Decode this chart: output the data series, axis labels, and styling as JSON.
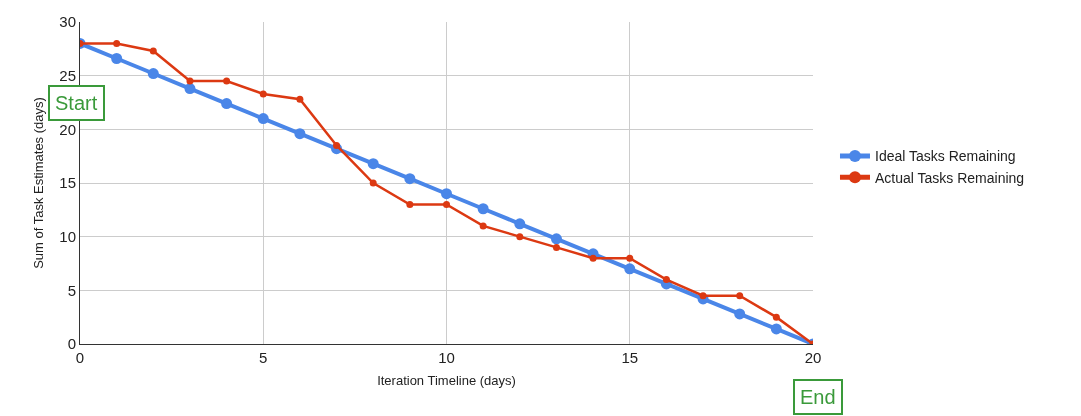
{
  "chart_data": {
    "type": "line",
    "xlabel": "Iteration Timeline (days)",
    "ylabel": "Sum of Task Estimates (days)",
    "x": [
      0,
      1,
      2,
      3,
      4,
      5,
      6,
      7,
      8,
      9,
      10,
      11,
      12,
      13,
      14,
      15,
      16,
      17,
      18,
      19,
      20
    ],
    "series": [
      {
        "name": "Ideal Tasks Remaining",
        "color": "#4a86e8",
        "values": [
          28,
          26.6,
          25.2,
          23.8,
          22.4,
          21,
          19.6,
          18.2,
          16.8,
          15.4,
          14,
          12.6,
          11.2,
          9.8,
          8.4,
          7,
          5.6,
          4.2,
          2.8,
          1.4,
          0
        ]
      },
      {
        "name": "Actual Tasks Remaining",
        "color": "#dc3912",
        "values": [
          28,
          28,
          27.3,
          24.5,
          24.5,
          23.3,
          22.8,
          18.5,
          15,
          13,
          13,
          11,
          10,
          9,
          8,
          8,
          6,
          4.5,
          4.5,
          2.5,
          0
        ]
      }
    ],
    "xlim": [
      0,
      20
    ],
    "xticks": [
      0,
      5,
      10,
      15,
      20
    ],
    "ylim": [
      0,
      30
    ],
    "yticks": [
      0,
      5,
      10,
      15,
      20,
      25,
      30
    ],
    "grid": true,
    "legend": "right",
    "marker": "circle",
    "line_style": "solid",
    "annotations": [
      "Start",
      "End"
    ]
  }
}
